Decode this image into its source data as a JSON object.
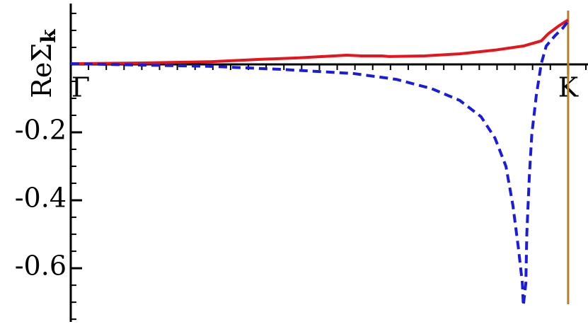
{
  "chart_data": {
    "type": "line",
    "ylabel": "ReΣ",
    "ylabel_sub": "k",
    "xlim": [
      0,
      1.04
    ],
    "ylim": [
      -0.758,
      0.179
    ],
    "xticks": [
      {
        "value": 0,
        "label": "Γ"
      },
      {
        "value": 1,
        "label": "K"
      }
    ],
    "yticks": [
      -0.6,
      -0.4,
      -0.2
    ],
    "vlines": [
      {
        "x": 1,
        "color": "#b8801f"
      }
    ],
    "series": [
      {
        "color": "#e8141b",
        "dash": false,
        "x": [
          0,
          0.142,
          0.284,
          0.384,
          0.455,
          0.555,
          0.583,
          0.626,
          0.64,
          0.711,
          0.782,
          0.853,
          0.91,
          0.946,
          0.96,
          0.981,
          1
        ],
        "values": [
          0.002,
          0.004,
          0.008,
          0.015,
          0.019,
          0.027,
          0.025,
          0.025,
          0.023,
          0.025,
          0.031,
          0.042,
          0.054,
          0.069,
          0.09,
          0.113,
          0.131
        ]
      },
      {
        "color": "#1a1ae0",
        "dash": true,
        "x": [
          0,
          0.284,
          0.427,
          0.569,
          0.654,
          0.725,
          0.782,
          0.825,
          0.853,
          0.875,
          0.889,
          0.9,
          0.908,
          0.91,
          0.915,
          0.917,
          0.922,
          0.927,
          0.936,
          0.946,
          0.956,
          0.974,
          0.989,
          1
        ],
        "values": [
          0.002,
          -0.006,
          -0.015,
          -0.027,
          -0.044,
          -0.071,
          -0.106,
          -0.154,
          -0.217,
          -0.3,
          -0.415,
          -0.54,
          -0.644,
          -0.71,
          -0.644,
          -0.498,
          -0.331,
          -0.206,
          -0.092,
          0.002,
          0.054,
          0.085,
          0.106,
          0.127
        ]
      }
    ]
  }
}
